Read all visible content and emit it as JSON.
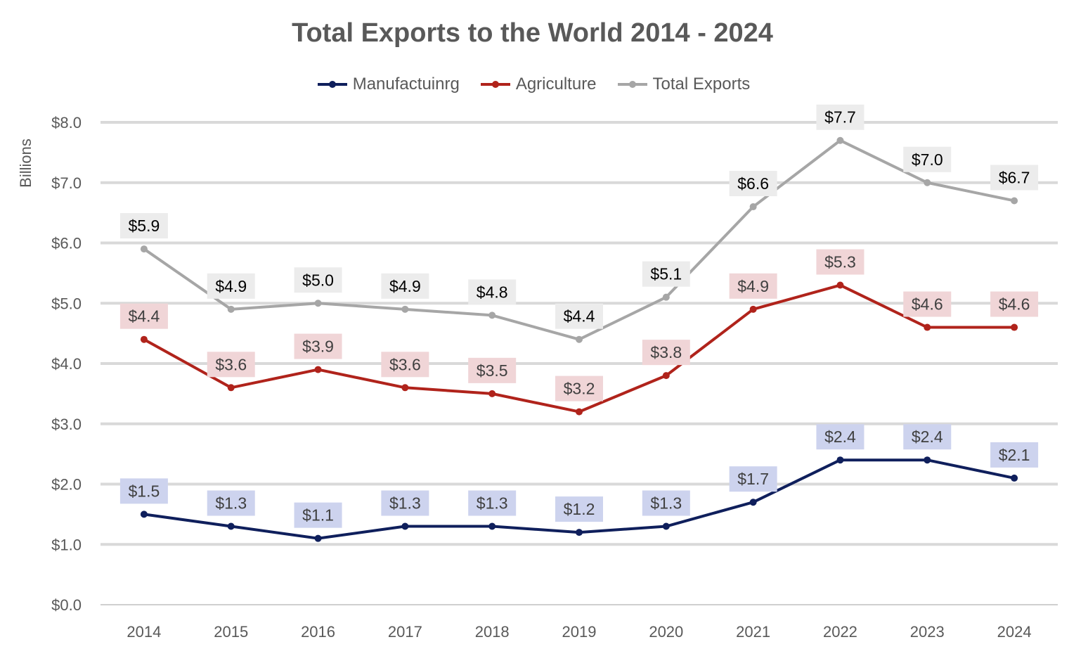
{
  "chart_data": {
    "type": "line",
    "title": "Total Exports to the World 2014 - 2024",
    "ylabel": "Billions",
    "xlabel": "",
    "ylim": [
      0,
      8
    ],
    "yticks": [
      "$0.0",
      "$1.0",
      "$2.0",
      "$3.0",
      "$4.0",
      "$5.0",
      "$6.0",
      "$7.0",
      "$8.0"
    ],
    "grid": true,
    "legend_position": "top",
    "categories": [
      "2014",
      "2015",
      "2016",
      "2017",
      "2018",
      "2019",
      "2020",
      "2021",
      "2022",
      "2023",
      "2024"
    ],
    "series": [
      {
        "name": "Manufactuinrg",
        "color": "#0f1f5c",
        "label_bg": "#cdd3ee",
        "values": [
          1.5,
          1.3,
          1.1,
          1.3,
          1.3,
          1.2,
          1.3,
          1.7,
          2.4,
          2.4,
          2.1
        ],
        "labels": [
          "$1.5",
          "$1.3",
          "$1.1",
          "$1.3",
          "$1.3",
          "$1.2",
          "$1.3",
          "$1.7",
          "$2.4",
          "$2.4",
          "$2.1"
        ]
      },
      {
        "name": "Agriculture",
        "color": "#b0231b",
        "label_bg": "#f0d5d7",
        "values": [
          4.4,
          3.6,
          3.9,
          3.6,
          3.5,
          3.2,
          3.8,
          4.9,
          5.3,
          4.6,
          4.6
        ],
        "labels": [
          "$4.4",
          "$3.6",
          "$3.9",
          "$3.6",
          "$3.5",
          "$3.2",
          "$3.8",
          "$4.9",
          "$5.3",
          "$4.6",
          "$4.6"
        ]
      },
      {
        "name": "Total Exports",
        "color": "#a6a6a6",
        "label_bg": "#ececec",
        "values": [
          5.9,
          4.9,
          5.0,
          4.9,
          4.8,
          4.4,
          5.1,
          6.6,
          7.7,
          7.0,
          6.7
        ],
        "labels": [
          "$5.9",
          "$4.9",
          "$5.0",
          "$4.9",
          "$4.8",
          "$4.4",
          "$5.1",
          "$6.6",
          "$7.7",
          "$7.0",
          "$6.7"
        ]
      }
    ]
  }
}
